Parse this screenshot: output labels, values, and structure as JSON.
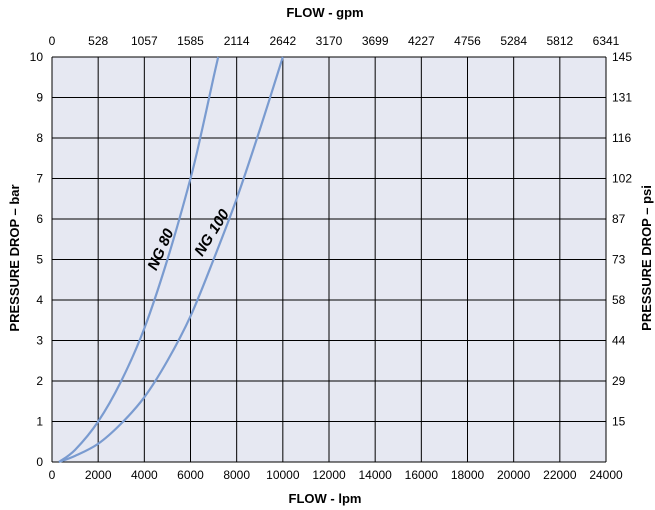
{
  "chart_data": {
    "type": "line",
    "title": "",
    "xlabel": "FLOW - lpm",
    "ylabel": "PRESSURE DROP – bar",
    "x2label": "FLOW - gpm",
    "y2label": "PRESSURE DROP – psi",
    "xlim": [
      0,
      24000
    ],
    "ylim": [
      0,
      10
    ],
    "grid": true,
    "x_ticks": [
      0,
      2000,
      4000,
      6000,
      8000,
      10000,
      12000,
      14000,
      16000,
      18000,
      20000,
      22000,
      24000
    ],
    "x_tick_labels": [
      "0",
      "2000",
      "4000",
      "6000",
      "8000",
      "10000",
      "12000",
      "14000",
      "16000",
      "18000",
      "20000",
      "22000",
      "24000"
    ],
    "y_ticks": [
      0,
      1,
      2,
      3,
      4,
      5,
      6,
      7,
      8,
      9,
      10
    ],
    "y_tick_labels": [
      "0",
      "1",
      "2",
      "3",
      "4",
      "5",
      "6",
      "7",
      "8",
      "9",
      "10"
    ],
    "x2_ticks": [
      0,
      2000,
      4000,
      6000,
      8000,
      10000,
      12000,
      14000,
      16000,
      18000,
      20000,
      22000,
      24000
    ],
    "x2_tick_labels": [
      "0",
      "528",
      "1057",
      "1585",
      "2114",
      "2642",
      "3170",
      "3699",
      "4227",
      "4756",
      "5284",
      "5812",
      "6341"
    ],
    "y2_ticks": [
      1,
      2,
      3,
      4,
      5,
      6,
      7,
      8,
      9,
      10
    ],
    "y2_tick_labels": [
      "15",
      "29",
      "44",
      "58",
      "73",
      "87",
      "102",
      "116",
      "131",
      "145"
    ],
    "series": [
      {
        "name": "NG 80",
        "color": "#7a9bd0",
        "x": [
          300,
          1000,
          2000,
          3000,
          4000,
          5000,
          6000,
          6500,
          7000,
          7200
        ],
        "y": [
          0,
          0.3,
          1.0,
          2.0,
          3.3,
          5.0,
          7.0,
          8.2,
          9.5,
          10.0
        ]
      },
      {
        "name": "NG 100",
        "color": "#7a9bd0",
        "x": [
          300,
          1000,
          2000,
          3000,
          4000,
          5000,
          6000,
          7000,
          8000,
          9000,
          10000
        ],
        "y": [
          0,
          0.15,
          0.45,
          0.95,
          1.6,
          2.5,
          3.6,
          5.0,
          6.5,
          8.2,
          10.0
        ]
      }
    ],
    "annotations": [
      {
        "text": "NG 80",
        "x": 4900,
        "y": 5.2,
        "rotation": -66
      },
      {
        "text": "NG 100",
        "x": 7100,
        "y": 5.6,
        "rotation": -58
      }
    ]
  },
  "colors": {
    "plot_background": "#e6e8f2",
    "grid": "#000000",
    "curve": "#7a9bd0"
  }
}
